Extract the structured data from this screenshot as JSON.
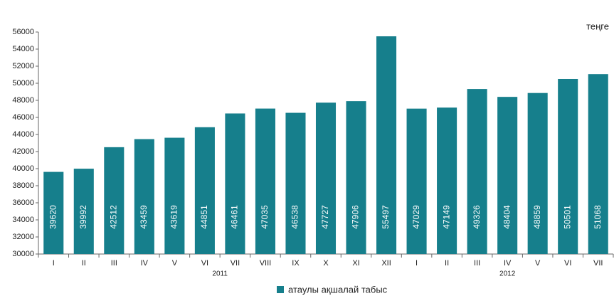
{
  "chart_data": {
    "type": "bar",
    "unit_label": "теңге",
    "categories": [
      "I",
      "II",
      "III",
      "IV",
      "V",
      "VI",
      "VII",
      "VIII",
      "IX",
      "X",
      "XI",
      "XII",
      "I",
      "II",
      "III",
      "IV",
      "V",
      "VI",
      "VII"
    ],
    "category_groups": [
      {
        "label": "2011",
        "size": 12
      },
      {
        "label": "2012",
        "size": 7
      }
    ],
    "series": [
      {
        "name": "атаулы ақшалай табыс",
        "color": "#167f8c",
        "values": [
          39620,
          39992,
          42512,
          43459,
          43619,
          44851,
          46461,
          47035,
          46538,
          47727,
          47906,
          55497,
          47029,
          47149,
          49326,
          48404,
          48859,
          50501,
          51068
        ]
      }
    ],
    "ylim": [
      30000,
      56000
    ],
    "yticks": [
      30000,
      32000,
      34000,
      36000,
      38000,
      40000,
      42000,
      44000,
      46000,
      48000,
      50000,
      52000,
      54000,
      56000
    ],
    "grid": false,
    "data_labels": true,
    "legend": "bottom"
  }
}
